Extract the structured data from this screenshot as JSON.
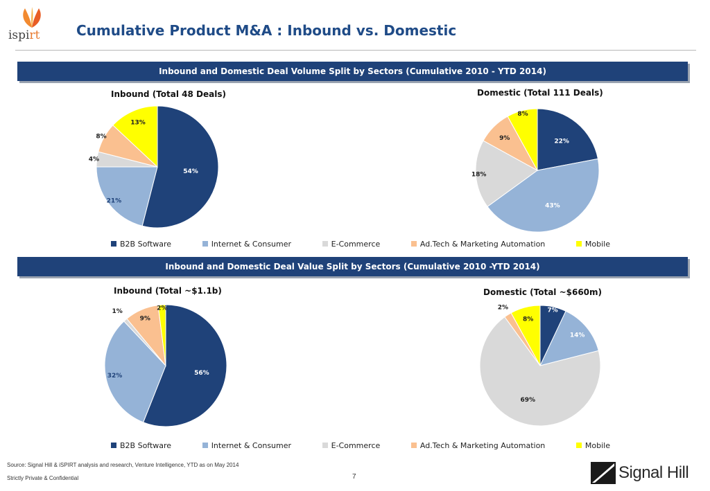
{
  "header": {
    "title": "Cumulative Product M&A : Inbound vs. Domestic",
    "logo": {
      "text_main": "ispi",
      "text_accent": "rt"
    }
  },
  "sections": [
    {
      "banner": "Inbound and Domestic Deal Volume Split by Sectors (Cumulative 2010 - YTD 2014)"
    },
    {
      "banner": "Inbound and Domestic Deal Value Split by Sectors (Cumulative 2010 -YTD 2014)"
    }
  ],
  "legend": {
    "items": [
      {
        "label": "B2B Software",
        "color": "#1f4279"
      },
      {
        "label": "Internet & Consumer",
        "color": "#95b3d7"
      },
      {
        "label": "E-Commerce",
        "color": "#d9d9d9"
      },
      {
        "label": "Ad.Tech & Marketing Automation",
        "color": "#fac090"
      },
      {
        "label": "Mobile",
        "color": "#ffff00"
      }
    ]
  },
  "chart_data": [
    {
      "type": "pie",
      "title": "Inbound (Total 48 Deals)",
      "categories": [
        "B2B Software",
        "Internet & Consumer",
        "E-Commerce",
        "Ad.Tech & Marketing Automation",
        "Mobile"
      ],
      "values": [
        54,
        21,
        4,
        8,
        13
      ],
      "labels": [
        "54%",
        "21%",
        "4%",
        "8%",
        "13%"
      ]
    },
    {
      "type": "pie",
      "title": "Domestic (Total 111 Deals)",
      "categories": [
        "B2B Software",
        "Internet & Consumer",
        "E-Commerce",
        "Ad.Tech & Marketing Automation",
        "Mobile"
      ],
      "values": [
        22,
        43,
        18,
        9,
        8
      ],
      "labels": [
        "22%",
        "43%",
        "18%",
        "9%",
        "8%"
      ]
    },
    {
      "type": "pie",
      "title": "Inbound (Total ~$1.1b)",
      "categories": [
        "B2B Software",
        "Internet & Consumer",
        "E-Commerce",
        "Ad.Tech & Marketing Automation",
        "Mobile"
      ],
      "values": [
        56,
        32,
        1,
        9,
        2
      ],
      "labels": [
        "56%",
        "32%",
        "1%",
        "9%",
        "2%"
      ]
    },
    {
      "type": "pie",
      "title": "Domestic (Total ~$660m)",
      "categories": [
        "B2B Software",
        "Internet & Consumer",
        "E-Commerce",
        "Ad.Tech & Marketing Automation",
        "Mobile"
      ],
      "values": [
        7,
        14,
        69,
        2,
        8
      ],
      "labels": [
        "7%",
        "14%",
        "69%",
        "2%",
        "8%"
      ]
    }
  ],
  "footer": {
    "source": "Source: Signal Hill & iSPIRT analysis and research, Venture Intelligence, YTD as on May 2014",
    "confidential": "Strictly Private & Confidential",
    "page_number": "7",
    "brand": "Signal Hill"
  }
}
